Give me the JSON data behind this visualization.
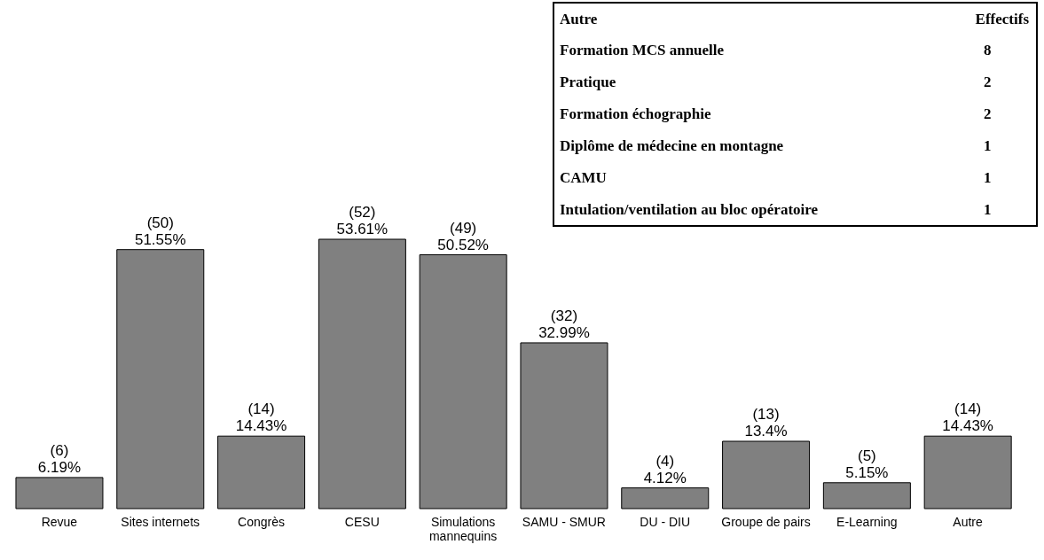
{
  "chart_data": {
    "type": "bar",
    "categories": [
      "Revue",
      "Sites internets",
      "Congrès",
      "CESU",
      "Simulations mannequins",
      "SAMU - SMUR",
      "DU - DIU",
      "Groupe de pairs",
      "E-Learning",
      "Autre"
    ],
    "values": [
      6.19,
      51.55,
      14.43,
      53.61,
      50.52,
      32.99,
      4.12,
      13.4,
      5.15,
      14.43
    ],
    "value_labels": [
      "(6)\n6.19%",
      "(50)\n51.55%",
      "(14)\n14.43%",
      "(52)\n53.61%",
      "(49)\n50.52%",
      "(32)\n32.99%",
      "(4)\n4.12%",
      "(13)\n13.4%",
      "(5)\n5.15%",
      "(14)\n14.43%"
    ],
    "color": "#808080",
    "annotations": [
      "Autre\tEffectifs",
      "Formation MCS annuelle\t8",
      "Pratique\t2",
      "Formation échographie\t2",
      "Diplôme de médecine en montagne\t1",
      "CAMU\t1",
      "Intulation/ventilation au bloc opératoire\t1"
    ]
  }
}
